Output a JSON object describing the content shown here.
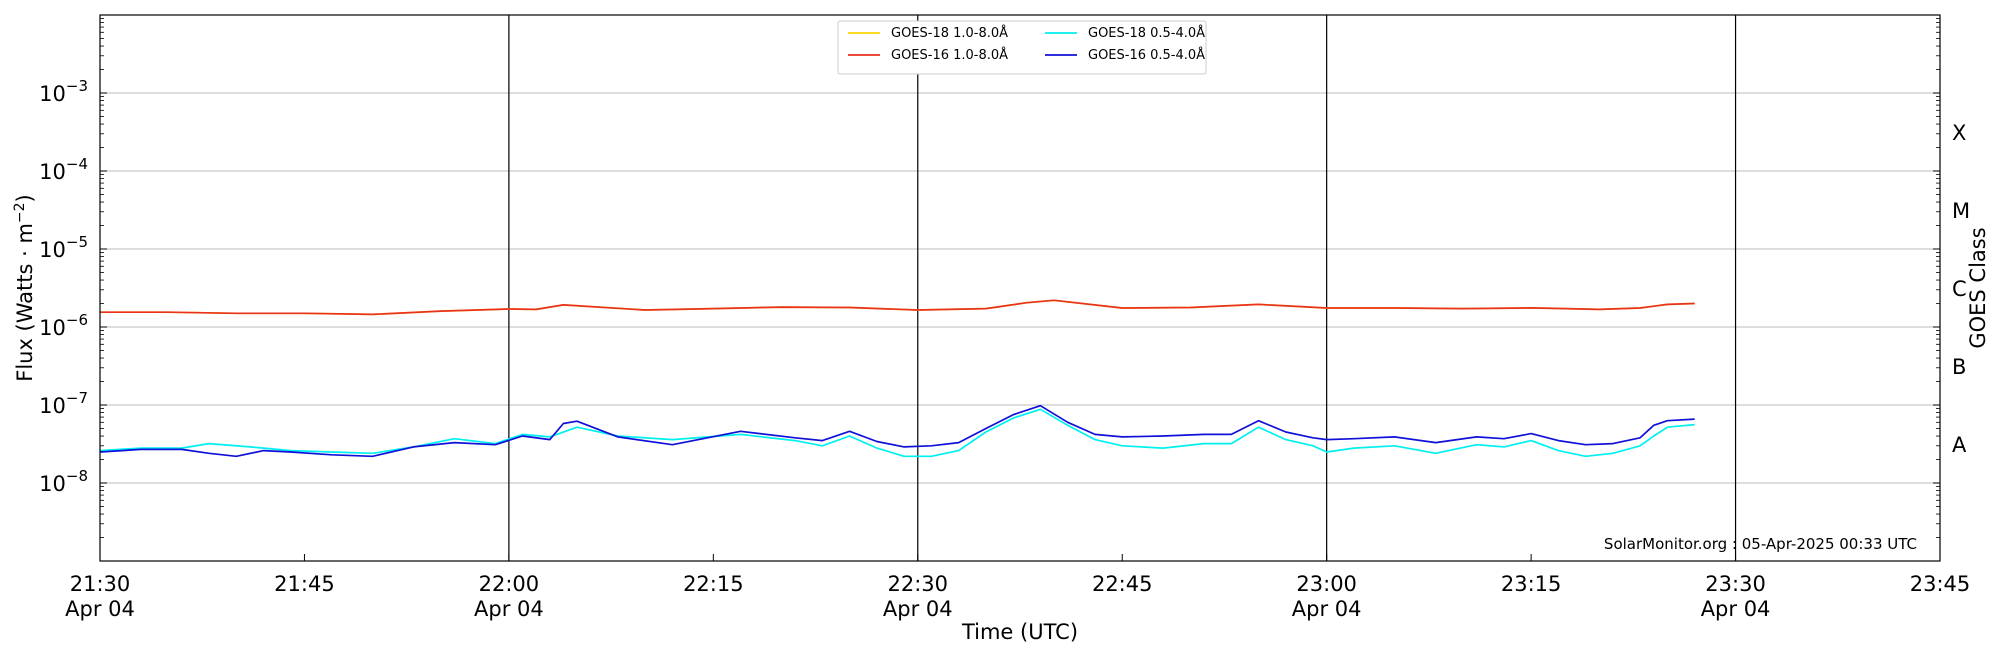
{
  "chart_data": {
    "type": "line",
    "xlabel": "Time (UTC)",
    "ylabel": "Flux (Watts · m",
    "ylabel_sup": "−2",
    "ylabel_close": ")",
    "y2label": "GOES Class",
    "yscale": "log",
    "ylim": [
      1e-09,
      0.01
    ],
    "xlim": [
      "21:30",
      "23:45"
    ],
    "grid": "horizontal at decades",
    "credit": "SolarMonitor.org : 05-Apr-2025 00:33 UTC",
    "legend_position": "top-center",
    "x_ticks": [
      {
        "time": "21:30",
        "line1": "21:30",
        "line2": "Apr 04"
      },
      {
        "time": "21:45",
        "line1": "21:45",
        "line2": ""
      },
      {
        "time": "22:00",
        "line1": "22:00",
        "line2": "Apr 04"
      },
      {
        "time": "22:15",
        "line1": "22:15",
        "line2": ""
      },
      {
        "time": "22:30",
        "line1": "22:30",
        "line2": "Apr 04"
      },
      {
        "time": "22:45",
        "line1": "22:45",
        "line2": ""
      },
      {
        "time": "23:00",
        "line1": "23:00",
        "line2": "Apr 04"
      },
      {
        "time": "23:15",
        "line1": "23:15",
        "line2": ""
      },
      {
        "time": "23:30",
        "line1": "23:30",
        "line2": "Apr 04"
      },
      {
        "time": "23:45",
        "line1": "23:45",
        "line2": ""
      }
    ],
    "vertical_lines": [
      "22:00",
      "22:30",
      "23:00",
      "23:30"
    ],
    "y_ticks": [
      {
        "value": 1e-08,
        "base": "10",
        "exp": "−8"
      },
      {
        "value": 1e-07,
        "base": "10",
        "exp": "−7"
      },
      {
        "value": 1e-06,
        "base": "10",
        "exp": "−6"
      },
      {
        "value": 1e-05,
        "base": "10",
        "exp": "−5"
      },
      {
        "value": 0.0001,
        "base": "10",
        "exp": "−4"
      },
      {
        "value": 0.001,
        "base": "10",
        "exp": "−3"
      }
    ],
    "goes_classes": [
      {
        "label": "A",
        "value": 3.162e-08
      },
      {
        "label": "B",
        "value": 3.162e-07
      },
      {
        "label": "C",
        "value": 3.162e-06
      },
      {
        "label": "M",
        "value": 3.162e-05
      },
      {
        "label": "X",
        "value": 0.0003162
      }
    ],
    "series": [
      {
        "name": "GOES-18 1.0-8.0Å",
        "color": "#ffd700",
        "times": [
          "21:30",
          "21:35",
          "21:40",
          "21:45",
          "21:50",
          "21:55",
          "22:00",
          "22:02",
          "22:04",
          "22:10",
          "22:15",
          "22:20",
          "22:25",
          "22:30",
          "22:35",
          "22:38",
          "22:40",
          "22:45",
          "22:50",
          "22:55",
          "23:00",
          "23:05",
          "23:10",
          "23:15",
          "23:20",
          "23:23",
          "23:25",
          "23:27"
        ],
        "values": [
          1.55e-06,
          1.55e-06,
          1.5e-06,
          1.5e-06,
          1.45e-06,
          1.6e-06,
          1.7e-06,
          1.68e-06,
          1.92e-06,
          1.65e-06,
          1.72e-06,
          1.8e-06,
          1.78e-06,
          1.65e-06,
          1.72e-06,
          2.05e-06,
          2.2e-06,
          1.75e-06,
          1.78e-06,
          1.95e-06,
          1.75e-06,
          1.75e-06,
          1.72e-06,
          1.76e-06,
          1.68e-06,
          1.75e-06,
          1.95e-06,
          2e-06
        ]
      },
      {
        "name": "GOES-16 1.0-8.0Å",
        "color": "#e8321e",
        "times": [
          "21:30",
          "21:35",
          "21:40",
          "21:45",
          "21:50",
          "21:55",
          "22:00",
          "22:02",
          "22:04",
          "22:10",
          "22:15",
          "22:20",
          "22:25",
          "22:30",
          "22:35",
          "22:38",
          "22:40",
          "22:45",
          "22:50",
          "22:55",
          "23:00",
          "23:05",
          "23:10",
          "23:15",
          "23:20",
          "23:23",
          "23:25",
          "23:27"
        ],
        "values": [
          1.55e-06,
          1.55e-06,
          1.5e-06,
          1.5e-06,
          1.45e-06,
          1.6e-06,
          1.7e-06,
          1.68e-06,
          1.92e-06,
          1.65e-06,
          1.72e-06,
          1.8e-06,
          1.78e-06,
          1.65e-06,
          1.72e-06,
          2.05e-06,
          2.2e-06,
          1.75e-06,
          1.78e-06,
          1.95e-06,
          1.75e-06,
          1.75e-06,
          1.72e-06,
          1.76e-06,
          1.68e-06,
          1.75e-06,
          1.95e-06,
          2e-06
        ]
      },
      {
        "name": "GOES-18 0.5-4.0Å",
        "color": "#00f0f0",
        "times": [
          "21:30",
          "21:33",
          "21:36",
          "21:38",
          "21:41",
          "21:44",
          "21:47",
          "21:50",
          "21:53",
          "21:56",
          "21:59",
          "22:01",
          "22:03",
          "22:05",
          "22:08",
          "22:12",
          "22:17",
          "22:21",
          "22:23",
          "22:25",
          "22:27",
          "22:29",
          "22:31",
          "22:33",
          "22:35",
          "22:37",
          "22:39",
          "22:41",
          "22:43",
          "22:45",
          "22:48",
          "22:51",
          "22:53",
          "22:55",
          "22:57",
          "22:59",
          "23:00",
          "23:02",
          "23:05",
          "23:08",
          "23:11",
          "23:13",
          "23:15",
          "23:17",
          "23:19",
          "23:21",
          "23:23",
          "23:24",
          "23:25",
          "23:27"
        ],
        "values": [
          2.6e-08,
          2.8e-08,
          2.8e-08,
          3.2e-08,
          2.9e-08,
          2.6e-08,
          2.5e-08,
          2.4e-08,
          2.9e-08,
          3.7e-08,
          3.2e-08,
          4.2e-08,
          3.9e-08,
          5.2e-08,
          4e-08,
          3.6e-08,
          4.2e-08,
          3.5e-08,
          3e-08,
          4e-08,
          2.8e-08,
          2.2e-08,
          2.2e-08,
          2.6e-08,
          4.5e-08,
          6.8e-08,
          8.8e-08,
          5.5e-08,
          3.6e-08,
          3e-08,
          2.8e-08,
          3.2e-08,
          3.2e-08,
          5.2e-08,
          3.6e-08,
          3e-08,
          2.5e-08,
          2.8e-08,
          3e-08,
          2.4e-08,
          3.1e-08,
          2.9e-08,
          3.5e-08,
          2.6e-08,
          2.2e-08,
          2.4e-08,
          3e-08,
          4e-08,
          5.2e-08,
          5.6e-08
        ]
      },
      {
        "name": "GOES-16 0.5-4.0Å",
        "color": "#1010d8",
        "times": [
          "21:30",
          "21:33",
          "21:36",
          "21:38",
          "21:40",
          "21:42",
          "21:44",
          "21:47",
          "21:50",
          "21:53",
          "21:56",
          "21:59",
          "22:01",
          "22:03",
          "22:04",
          "22:05",
          "22:08",
          "22:12",
          "22:17",
          "22:21",
          "22:23",
          "22:25",
          "22:27",
          "22:29",
          "22:31",
          "22:33",
          "22:35",
          "22:37",
          "22:39",
          "22:41",
          "22:43",
          "22:45",
          "22:48",
          "22:51",
          "22:53",
          "22:55",
          "22:57",
          "22:59",
          "23:00",
          "23:02",
          "23:05",
          "23:08",
          "23:11",
          "23:13",
          "23:15",
          "23:17",
          "23:19",
          "23:21",
          "23:23",
          "23:24",
          "23:25",
          "23:27"
        ],
        "values": [
          2.5e-08,
          2.7e-08,
          2.7e-08,
          2.4e-08,
          2.2e-08,
          2.6e-08,
          2.5e-08,
          2.3e-08,
          2.2e-08,
          2.9e-08,
          3.3e-08,
          3.1e-08,
          4e-08,
          3.6e-08,
          5.8e-08,
          6.2e-08,
          3.9e-08,
          3.1e-08,
          4.6e-08,
          3.8e-08,
          3.5e-08,
          4.6e-08,
          3.4e-08,
          2.9e-08,
          3e-08,
          3.3e-08,
          5e-08,
          7.5e-08,
          9.8e-08,
          6e-08,
          4.2e-08,
          3.9e-08,
          4e-08,
          4.2e-08,
          4.2e-08,
          6.3e-08,
          4.5e-08,
          3.8e-08,
          3.6e-08,
          3.7e-08,
          3.9e-08,
          3.3e-08,
          3.9e-08,
          3.7e-08,
          4.3e-08,
          3.5e-08,
          3.1e-08,
          3.2e-08,
          3.8e-08,
          5.5e-08,
          6.3e-08,
          6.6e-08
        ]
      }
    ]
  }
}
